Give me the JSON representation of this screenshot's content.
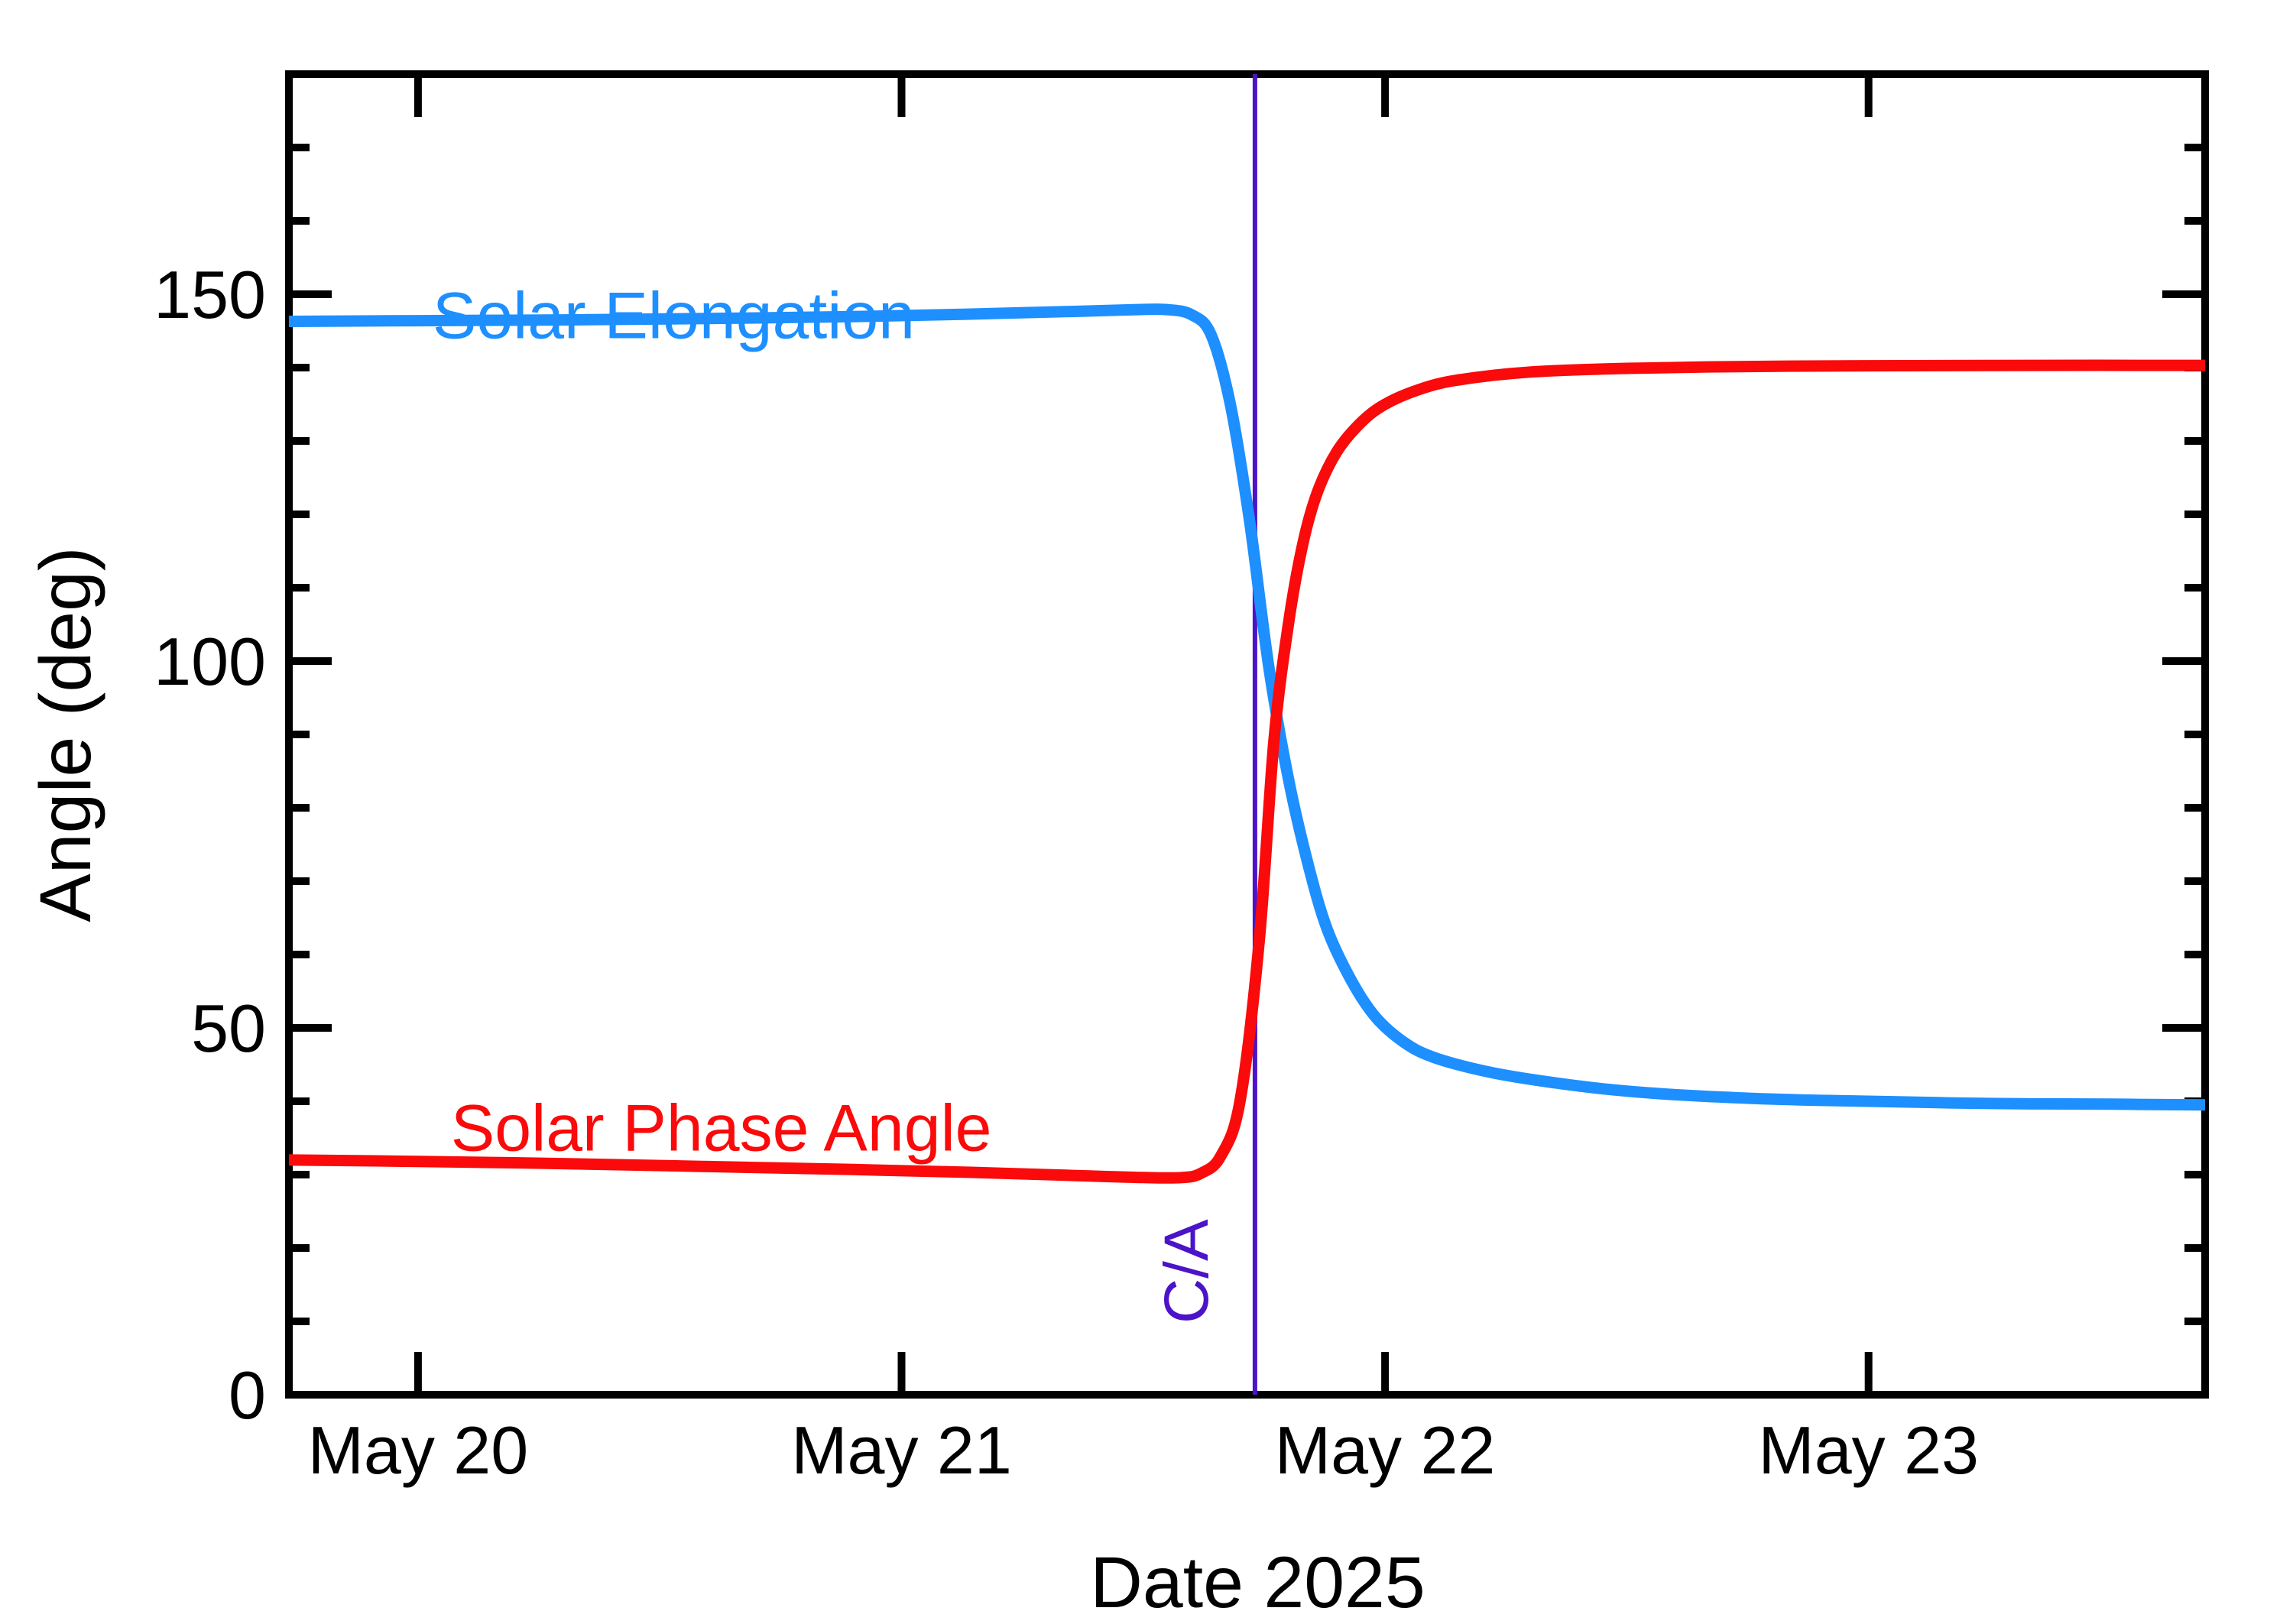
{
  "page": {
    "background": "#ffffff",
    "frame_color": "#000000"
  },
  "chart_data": {
    "type": "line",
    "title": "",
    "xlabel": "Date 2025",
    "ylabel": "Angle (deg)",
    "x_unit": "day of May 2025",
    "xlim": [
      19.733,
      23.696
    ],
    "ylim": [
      0,
      180
    ],
    "grid": false,
    "legend_position": "inline-labels",
    "x_ticks": [
      {
        "value": 20,
        "label": "May 20"
      },
      {
        "value": 21,
        "label": "May 21"
      },
      {
        "value": 22,
        "label": "May 22"
      },
      {
        "value": 23,
        "label": "May 23"
      }
    ],
    "y_ticks": [
      {
        "value": 0,
        "label": "0"
      },
      {
        "value": 50,
        "label": "50"
      },
      {
        "value": 100,
        "label": "100"
      },
      {
        "value": 150,
        "label": "150"
      }
    ],
    "y_minor_step": 10,
    "series": [
      {
        "name": "Solar Elongation",
        "color": "#1E8FFF",
        "label_pos": {
          "x": 20.03,
          "y": 144.0
        },
        "points": [
          [
            19.733,
            146.3
          ],
          [
            20.0,
            146.4
          ],
          [
            20.3,
            146.5
          ],
          [
            20.6,
            146.7
          ],
          [
            20.9,
            146.95
          ],
          [
            21.15,
            147.3
          ],
          [
            21.35,
            147.65
          ],
          [
            21.48,
            147.9
          ],
          [
            21.55,
            147.9
          ],
          [
            21.6,
            147.2
          ],
          [
            21.64,
            144.5
          ],
          [
            21.68,
            135.0
          ],
          [
            21.72,
            119.0
          ],
          [
            21.76,
            99.0
          ],
          [
            21.8,
            84.0
          ],
          [
            21.84,
            72.5
          ],
          [
            21.88,
            63.5
          ],
          [
            21.93,
            56.5
          ],
          [
            21.98,
            51.5
          ],
          [
            22.04,
            48.0
          ],
          [
            22.1,
            46.0
          ],
          [
            22.2,
            44.2
          ],
          [
            22.3,
            43.0
          ],
          [
            22.45,
            41.7
          ],
          [
            22.6,
            40.9
          ],
          [
            22.8,
            40.3
          ],
          [
            23.0,
            40.0
          ],
          [
            23.25,
            39.7
          ],
          [
            23.5,
            39.6
          ],
          [
            23.696,
            39.5
          ]
        ]
      },
      {
        "name": "Solar Phase Angle",
        "color": "#FA0A0A",
        "label_pos": {
          "x": 20.068,
          "y": 33.3
        },
        "points": [
          [
            19.733,
            32.0
          ],
          [
            20.0,
            31.8
          ],
          [
            20.3,
            31.5
          ],
          [
            20.6,
            31.1
          ],
          [
            20.9,
            30.7
          ],
          [
            21.15,
            30.3
          ],
          [
            21.35,
            29.9
          ],
          [
            21.5,
            29.6
          ],
          [
            21.58,
            29.6
          ],
          [
            21.62,
            30.2
          ],
          [
            21.66,
            32.5
          ],
          [
            21.7,
            40.0
          ],
          [
            21.74,
            62.0
          ],
          [
            21.77,
            89.0
          ],
          [
            21.8,
            105.0
          ],
          [
            21.83,
            116.0
          ],
          [
            21.86,
            123.0
          ],
          [
            21.9,
            128.5
          ],
          [
            21.95,
            132.5
          ],
          [
            22.0,
            135.0
          ],
          [
            22.07,
            137.0
          ],
          [
            22.15,
            138.3
          ],
          [
            22.3,
            139.4
          ],
          [
            22.5,
            139.9
          ],
          [
            22.75,
            140.15
          ],
          [
            23.0,
            140.25
          ],
          [
            23.35,
            140.3
          ],
          [
            23.696,
            140.3
          ]
        ]
      }
    ],
    "annotations": [
      {
        "type": "vline",
        "x": 21.731,
        "label": "C/A",
        "color": "#4B14C8",
        "label_pos": {
          "x": 21.633,
          "y": 16.8
        },
        "label_rotation_deg": -90
      }
    ]
  }
}
